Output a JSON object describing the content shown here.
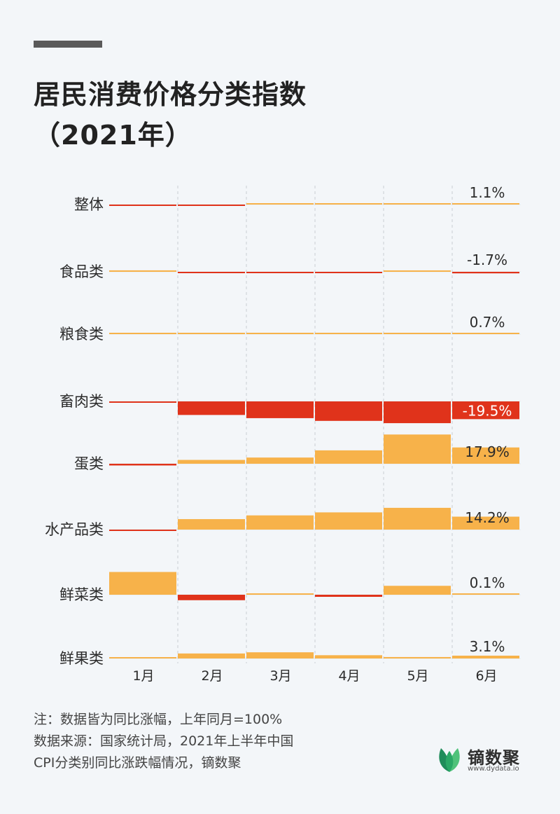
{
  "header": {
    "title_line1": "居民消费价格分类指数",
    "title_line2": "（2021年）"
  },
  "chart_data": {
    "type": "bar",
    "categories": [
      "1月",
      "2月",
      "3月",
      "4月",
      "5月",
      "6月"
    ],
    "series": [
      {
        "name": "整体",
        "values": [
          -0.3,
          -0.2,
          0.4,
          0.9,
          1.3,
          1.1
        ],
        "label": "1.1%"
      },
      {
        "name": "食品类",
        "values": [
          1.6,
          -0.2,
          -0.7,
          -0.7,
          0.3,
          -1.7
        ],
        "label": "-1.7%"
      },
      {
        "name": "粮食类",
        "values": [
          1.2,
          0.9,
          1.1,
          0.8,
          0.5,
          0.7
        ],
        "label": "0.7%"
      },
      {
        "name": "畜肉类",
        "values": [
          -0.5,
          -14.9,
          -18.4,
          -21.4,
          -23.9,
          -19.5
        ],
        "label": "-19.5%"
      },
      {
        "name": "蛋类",
        "values": [
          -1.9,
          4.2,
          6.8,
          14.7,
          32.1,
          17.9
        ],
        "label": "17.9%"
      },
      {
        "name": "水产品类",
        "values": [
          -0.4,
          11.5,
          15.6,
          18.9,
          23.9,
          14.2
        ],
        "label": "14.2%"
      },
      {
        "name": "鲜菜类",
        "values": [
          25.0,
          -6.0,
          0.1,
          -2.3,
          9.8,
          0.1
        ],
        "label": "0.1%"
      },
      {
        "name": "鲜果类",
        "values": [
          1.5,
          5.5,
          6.8,
          3.6,
          1.6,
          3.1
        ],
        "label": "3.1%"
      }
    ],
    "colors": {
      "positive": "#f7b24a",
      "negative": "#e0331b",
      "label_highlight_text": "#ffffff"
    }
  },
  "footnote": {
    "line1": "注：数据皆为同比涨幅，上年同月=100%",
    "line2": "数据来源：国家统计局，2021年上半年中国",
    "line3": "CPI分类别同比涨跌幅情况，镝数聚"
  },
  "brand": {
    "name": "镝数聚",
    "url": "www.dydata.io",
    "colors": {
      "leaf_dark": "#1f8c5a",
      "leaf_light": "#4fc27a"
    }
  }
}
